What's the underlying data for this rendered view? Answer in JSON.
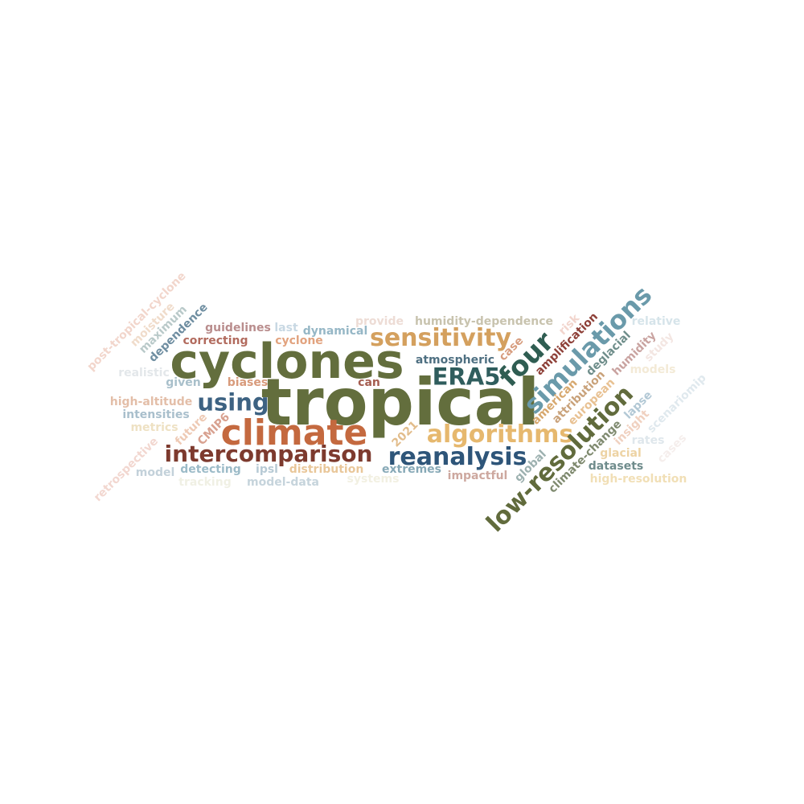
{
  "words": {
    "tropical": {
      "text": "tropical",
      "color": "#636e3d"
    },
    "cyclones": {
      "text": "cyclones",
      "color": "#636e3d"
    },
    "climate": {
      "text": "climate",
      "color": "#c4693f"
    },
    "intercomparison": {
      "text": "intercomparison",
      "color": "#7d3a2e"
    },
    "using": {
      "text": "using",
      "color": "#3d6282"
    },
    "sensitivity": {
      "text": "sensitivity",
      "color": "#d4a05e"
    },
    "era5": {
      "text": "ERA5",
      "color": "#2f5d5d"
    },
    "algorithms": {
      "text": "algorithms",
      "color": "#e6b86e"
    },
    "reanalysis": {
      "text": "reanalysis",
      "color": "#2e5579"
    },
    "four": {
      "text": "four",
      "color": "#2f5d52"
    },
    "simulations": {
      "text": "simulations",
      "color": "#6a9aaa"
    },
    "low_resolution": {
      "text": "low-resolution",
      "color": "#616b3c"
    },
    "atmospheric": {
      "text": "atmospheric",
      "color": "#4f7082"
    },
    "guidelines": {
      "text": "guidelines",
      "color": "#b98d8d"
    },
    "last": {
      "text": "last",
      "color": "#c8d8e3"
    },
    "dynamical": {
      "text": "dynamical",
      "color": "#96b7c6"
    },
    "provide": {
      "text": "provide",
      "color": "#eddcd5"
    },
    "humidity_dependence": {
      "text": "humidity-dependence",
      "color": "#c8c3ae"
    },
    "relative": {
      "text": "relative",
      "color": "#d6e4ea"
    },
    "correcting": {
      "text": "correcting",
      "color": "#b26b5e"
    },
    "cyclone": {
      "text": "cyclone",
      "color": "#e2a37f"
    },
    "realistic": {
      "text": "realistic",
      "color": "#e3e7ea"
    },
    "given": {
      "text": "given",
      "color": "#a9c0cb"
    },
    "biases": {
      "text": "biases",
      "color": "#d89b7c"
    },
    "can": {
      "text": "can",
      "color": "#a55d50"
    },
    "high_altitude": {
      "text": "high-altitude",
      "color": "#e3bea8"
    },
    "intensities": {
      "text": "intensities",
      "color": "#a9bfcc"
    },
    "metrics": {
      "text": "metrics",
      "color": "#eee1c3"
    },
    "model": {
      "text": "model",
      "color": "#c3d1da"
    },
    "detecting": {
      "text": "detecting",
      "color": "#9cbbc8"
    },
    "ipsl": {
      "text": "ipsl",
      "color": "#b7cad5"
    },
    "distribution": {
      "text": "distribution",
      "color": "#e9c79a"
    },
    "extremes": {
      "text": "extremes",
      "color": "#87a9b7"
    },
    "impactful": {
      "text": "impactful",
      "color": "#cda89f"
    },
    "tracking": {
      "text": "tracking",
      "color": "#f0f0e4"
    },
    "model_data": {
      "text": "model-data",
      "color": "#c6d4dc"
    },
    "systems": {
      "text": "systems",
      "color": "#f2f0e2"
    },
    "models": {
      "text": "models",
      "color": "#f3ead6"
    },
    "rates": {
      "text": "rates",
      "color": "#dfe7ec"
    },
    "glacial": {
      "text": "glacial",
      "color": "#edd3a4"
    },
    "datasets": {
      "text": "datasets",
      "color": "#6f8c8c"
    },
    "high_resolution": {
      "text": "high-resolution",
      "color": "#f1dfb6"
    },
    "post_tropical_cyclone": {
      "text": "post-tropical-cyclone",
      "color": "#f2d6cc"
    },
    "moisture": {
      "text": "moisture",
      "color": "#f0dccb"
    },
    "maximum": {
      "text": "maximum",
      "color": "#b9c9c9"
    },
    "dependence": {
      "text": "dependence",
      "color": "#6f8ea1"
    },
    "future": {
      "text": "future",
      "color": "#eecab5"
    },
    "cmip6": {
      "text": "CMIP6",
      "color": "#d8a190"
    },
    "retrospective": {
      "text": "retrospective",
      "color": "#f2d7d0"
    },
    "year_2021": {
      "text": "2021",
      "color": "#e2bd8c"
    },
    "case": {
      "text": "case",
      "color": "#d79d7f"
    },
    "amplification": {
      "text": "amplification",
      "color": "#8e4038"
    },
    "risk": {
      "text": "risk",
      "color": "#f2d5cd"
    },
    "deglacial": {
      "text": "deglacial",
      "color": "#6f8e8b"
    },
    "humidity": {
      "text": "humidity",
      "color": "#c9a3a0"
    },
    "study": {
      "text": "study",
      "color": "#f3e6e2"
    },
    "american": {
      "text": "american",
      "color": "#d7a86e"
    },
    "attribution": {
      "text": "attribution",
      "color": "#c9a27a"
    },
    "european": {
      "text": "european",
      "color": "#e8c192"
    },
    "lapse": {
      "text": "lapse",
      "color": "#b2c8d5"
    },
    "insight": {
      "text": "insight",
      "color": "#f0d1c0"
    },
    "scenariomip": {
      "text": "scenariomip",
      "color": "#e0e9ee"
    },
    "global": {
      "text": "global",
      "color": "#9db1b0"
    },
    "climate_change": {
      "text": "climate-change",
      "color": "#7f8a6f"
    },
    "cases": {
      "text": "cases",
      "color": "#f5eeec"
    }
  }
}
